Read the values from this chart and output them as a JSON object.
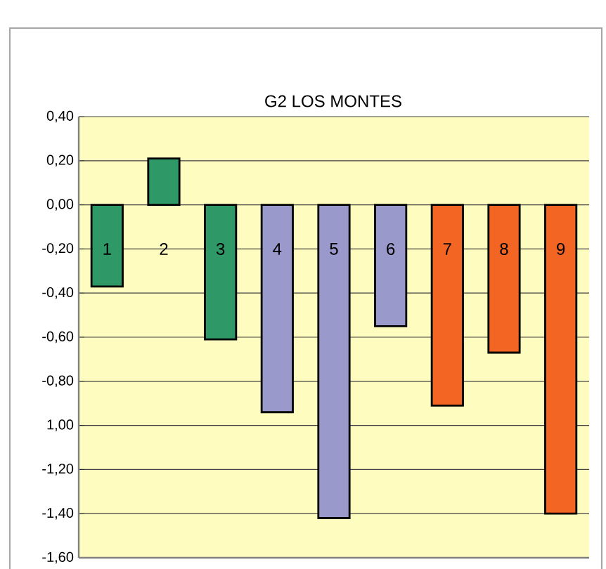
{
  "chart_data": {
    "type": "bar",
    "title": "G2 LOS MONTES",
    "categories": [
      "1",
      "2",
      "3",
      "4",
      "5",
      "6",
      "7",
      "8",
      "9"
    ],
    "values": [
      -0.37,
      0.21,
      -0.61,
      -0.94,
      -1.42,
      -0.55,
      -0.91,
      -0.67,
      -1.4
    ],
    "colors": [
      "#2e9966",
      "#2e9966",
      "#2e9966",
      "#9999cc",
      "#9999cc",
      "#9999cc",
      "#f26522",
      "#f26522",
      "#f26522"
    ],
    "ylim": [
      -1.6,
      0.4
    ],
    "yticks": [
      {
        "value": 0.4,
        "label": "0,40"
      },
      {
        "value": 0.2,
        "label": "0,20"
      },
      {
        "value": 0,
        "label": "0,00"
      },
      {
        "value": -0.2,
        "label": "-0,20"
      },
      {
        "value": -0.4,
        "label": "-0,40"
      },
      {
        "value": -0.6,
        "label": "-0,60"
      },
      {
        "value": -0.8,
        "label": "-0,80"
      },
      {
        "value": -1.0,
        "label": "1,00"
      },
      {
        "value": -1.2,
        "label": "-1,20"
      },
      {
        "value": -1.4,
        "label": "-1,40"
      },
      {
        "value": -1.6,
        "label": "-1,60"
      }
    ],
    "grid": true
  }
}
